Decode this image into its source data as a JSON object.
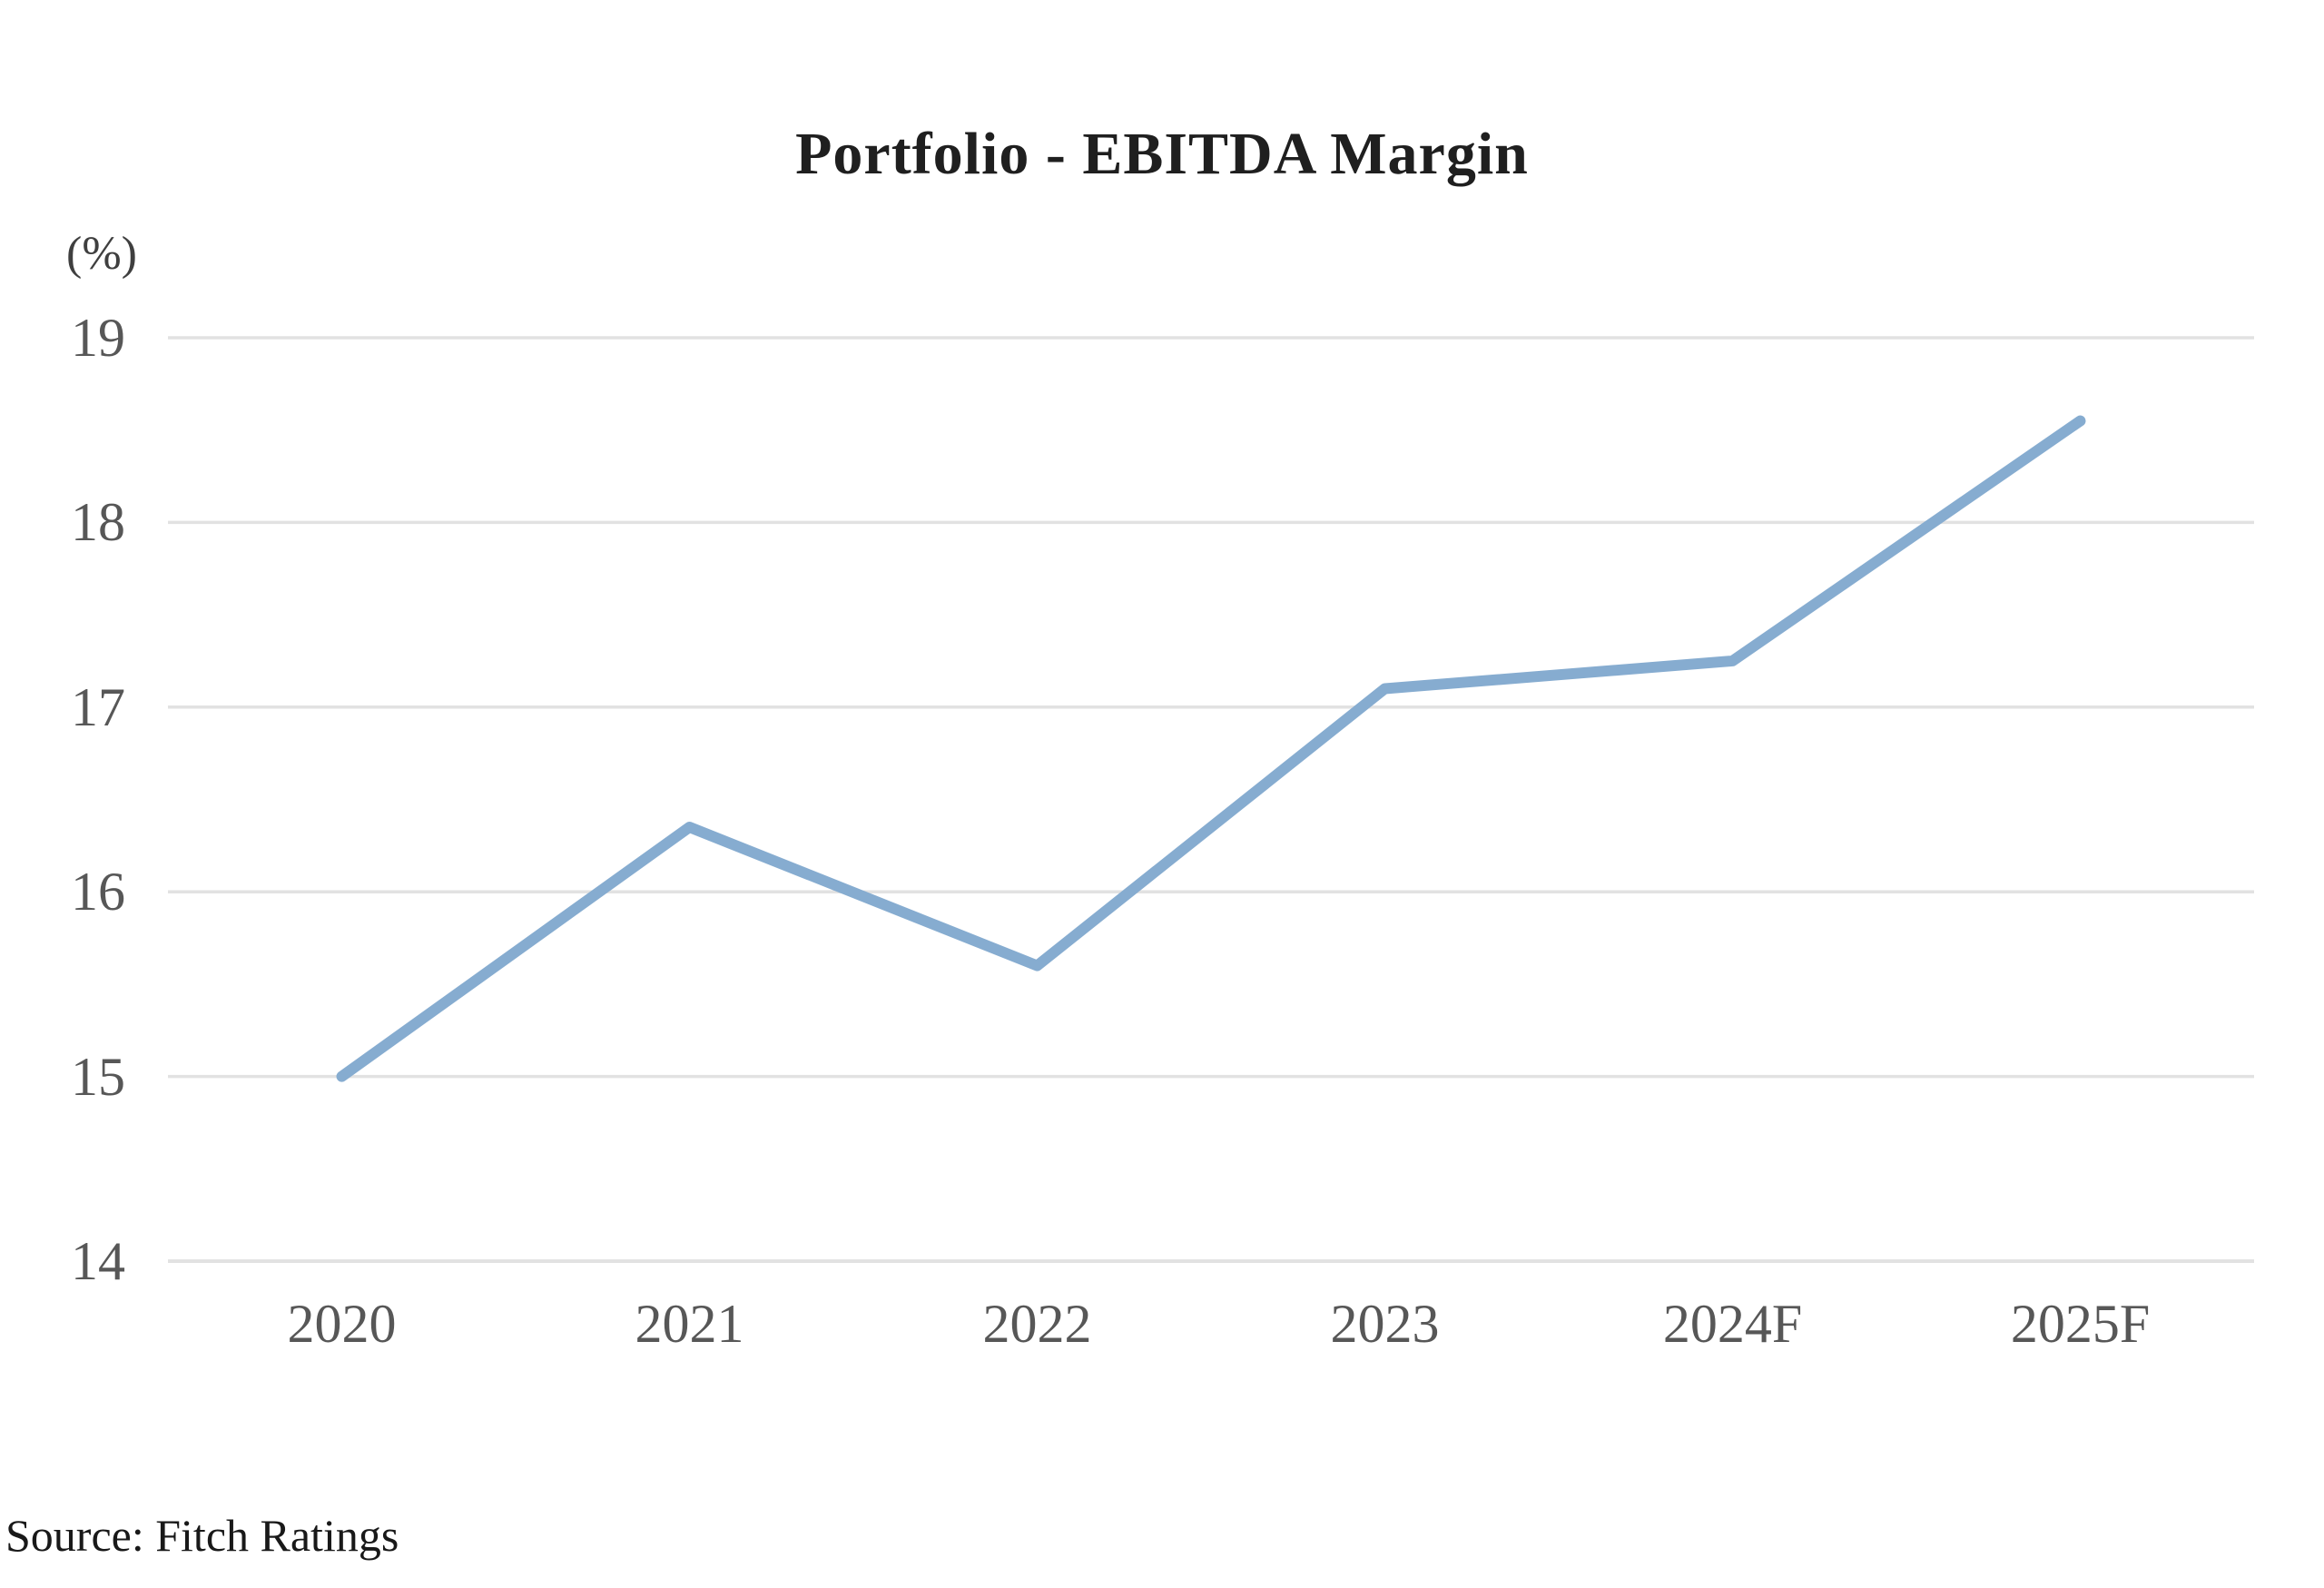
{
  "chart_data": {
    "type": "line",
    "title": "Portfolio - EBITDA Margin",
    "ylabel": "(%)",
    "xlabel": "",
    "categories": [
      "2020",
      "2021",
      "2022",
      "2023",
      "2024F",
      "2025F"
    ],
    "values": [
      15.0,
      16.35,
      15.6,
      17.1,
      17.25,
      18.55
    ],
    "ylim": [
      14,
      19
    ],
    "yticks": [
      14,
      15,
      16,
      17,
      18,
      19
    ],
    "grid": "horizontal gridlines on",
    "legend_position": "none",
    "line_color": "#86acd0",
    "grid_color": "#e2e2e2"
  },
  "source": "Source: Fitch Ratings"
}
